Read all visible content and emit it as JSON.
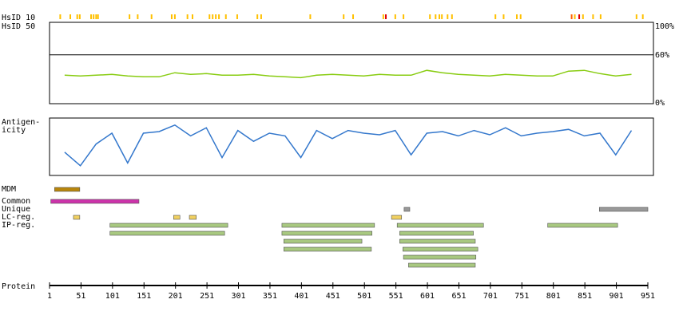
{
  "chart_data": {
    "type": "protein-features",
    "xlim": [
      1,
      951
    ],
    "xticks": [
      1,
      51,
      101,
      151,
      201,
      251,
      301,
      351,
      401,
      451,
      501,
      551,
      601,
      651,
      701,
      751,
      801,
      851,
      901,
      951
    ],
    "x_label": "Protein",
    "hsid10": {
      "label": "HsID 10",
      "positions": [
        18,
        34,
        45,
        49,
        67,
        71,
        75,
        78,
        128,
        141,
        163,
        195,
        200,
        220,
        228,
        255,
        260,
        265,
        270,
        281,
        299,
        331,
        337,
        415,
        468,
        483,
        531,
        535,
        550,
        563,
        605,
        614,
        620,
        624,
        633,
        640,
        709,
        722,
        743,
        749,
        830,
        835,
        842,
        848,
        864,
        876,
        933,
        943
      ],
      "colors": [
        "#ffc000",
        "#ffc000",
        "#ffc000",
        "#ffc000",
        "#ffc000",
        "#ffc000",
        "#ffc000",
        "#ffc000",
        "#ffc000",
        "#ffc000",
        "#ffc000",
        "#ffc000",
        "#ffc000",
        "#ffc000",
        "#ffc000",
        "#ffc000",
        "#ffc000",
        "#ffc000",
        "#ffc000",
        "#ffc000",
        "#ffc000",
        "#ffc000",
        "#ffc000",
        "#ffc000",
        "#ffc000",
        "#ffc000",
        "#ffc000",
        "#e00000",
        "#ffc000",
        "#ffc000",
        "#ffc000",
        "#ffc000",
        "#ffc000",
        "#ffc000",
        "#ffc000",
        "#ffc000",
        "#ffc000",
        "#ffc000",
        "#ffc000",
        "#ffc000",
        "#ff6000",
        "#ffc000",
        "#e00000",
        "#ffc000",
        "#ffc000",
        "#ffc000",
        "#ffc000",
        "#ffc000"
      ]
    },
    "hsid50_label": "HsID 50",
    "similarity": {
      "ylim": [
        0,
        100
      ],
      "yticks": [
        {
          "value": 100,
          "label": "100%"
        },
        {
          "value": 60,
          "label": "60%"
        },
        {
          "value": 0,
          "label": "0%"
        }
      ],
      "color": "#88cc11",
      "x": [
        25,
        50,
        75,
        100,
        125,
        150,
        175,
        200,
        225,
        250,
        275,
        300,
        325,
        350,
        375,
        400,
        425,
        450,
        475,
        500,
        525,
        550,
        575,
        600,
        625,
        650,
        675,
        700,
        725,
        750,
        775,
        800,
        825,
        850,
        875,
        900,
        925
      ],
      "values": [
        35,
        34,
        35,
        36,
        34,
        33,
        33,
        38,
        36,
        37,
        35,
        35,
        36,
        34,
        33,
        32,
        35,
        36,
        35,
        34,
        36,
        35,
        35,
        41,
        38,
        36,
        35,
        34,
        36,
        35,
        34,
        34,
        40,
        41,
        37,
        34,
        36
      ]
    },
    "antigenicity": {
      "label": [
        "Antigen-",
        "icity"
      ],
      "ylim": [
        0,
        100
      ],
      "color": "#3377cc",
      "x": [
        25,
        50,
        75,
        100,
        125,
        150,
        175,
        200,
        225,
        250,
        275,
        300,
        325,
        350,
        375,
        400,
        425,
        450,
        475,
        500,
        525,
        550,
        575,
        600,
        625,
        650,
        675,
        700,
        725,
        750,
        775,
        800,
        825,
        850,
        875,
        900,
        925
      ],
      "values": [
        40,
        15,
        55,
        75,
        20,
        75,
        78,
        90,
        70,
        85,
        30,
        80,
        60,
        75,
        70,
        30,
        80,
        65,
        80,
        75,
        72,
        80,
        35,
        75,
        78,
        70,
        80,
        72,
        85,
        70,
        75,
        78,
        82,
        70,
        75,
        35,
        80
      ]
    },
    "tracks": [
      {
        "label": "MDM",
        "color": "#b8860b",
        "rows": [
          [
            [
              9,
              49
            ]
          ]
        ]
      },
      {
        "label": "Common",
        "color": "#cc33aa",
        "rows": [
          [
            [
              3,
              143
            ]
          ]
        ]
      },
      {
        "label": "Unique",
        "color": "#999999",
        "rows": [
          [
            [
              564,
              573
            ],
            [
              874,
              951
            ]
          ]
        ]
      },
      {
        "label": "LC-reg.",
        "color": "#f0d060",
        "rows": [
          [
            [
              39,
              49
            ],
            [
              198,
              208
            ],
            [
              223,
              234
            ],
            [
              544,
              560
            ]
          ]
        ]
      },
      {
        "label": "IP-reg.",
        "color": "#a8c880",
        "rows": [
          [
            [
              97,
              284
            ],
            [
              370,
              517
            ],
            [
              553,
              690
            ],
            [
              792,
              903
            ]
          ],
          [
            [
              97,
              279
            ],
            [
              370,
              513
            ],
            [
              557,
              674
            ]
          ],
          [
            [
              373,
              497
            ],
            [
              557,
              677
            ]
          ],
          [
            [
              373,
              512
            ],
            [
              562,
              681
            ]
          ],
          [
            [
              563,
              678
            ]
          ],
          [
            [
              571,
              677
            ]
          ]
        ]
      }
    ]
  }
}
